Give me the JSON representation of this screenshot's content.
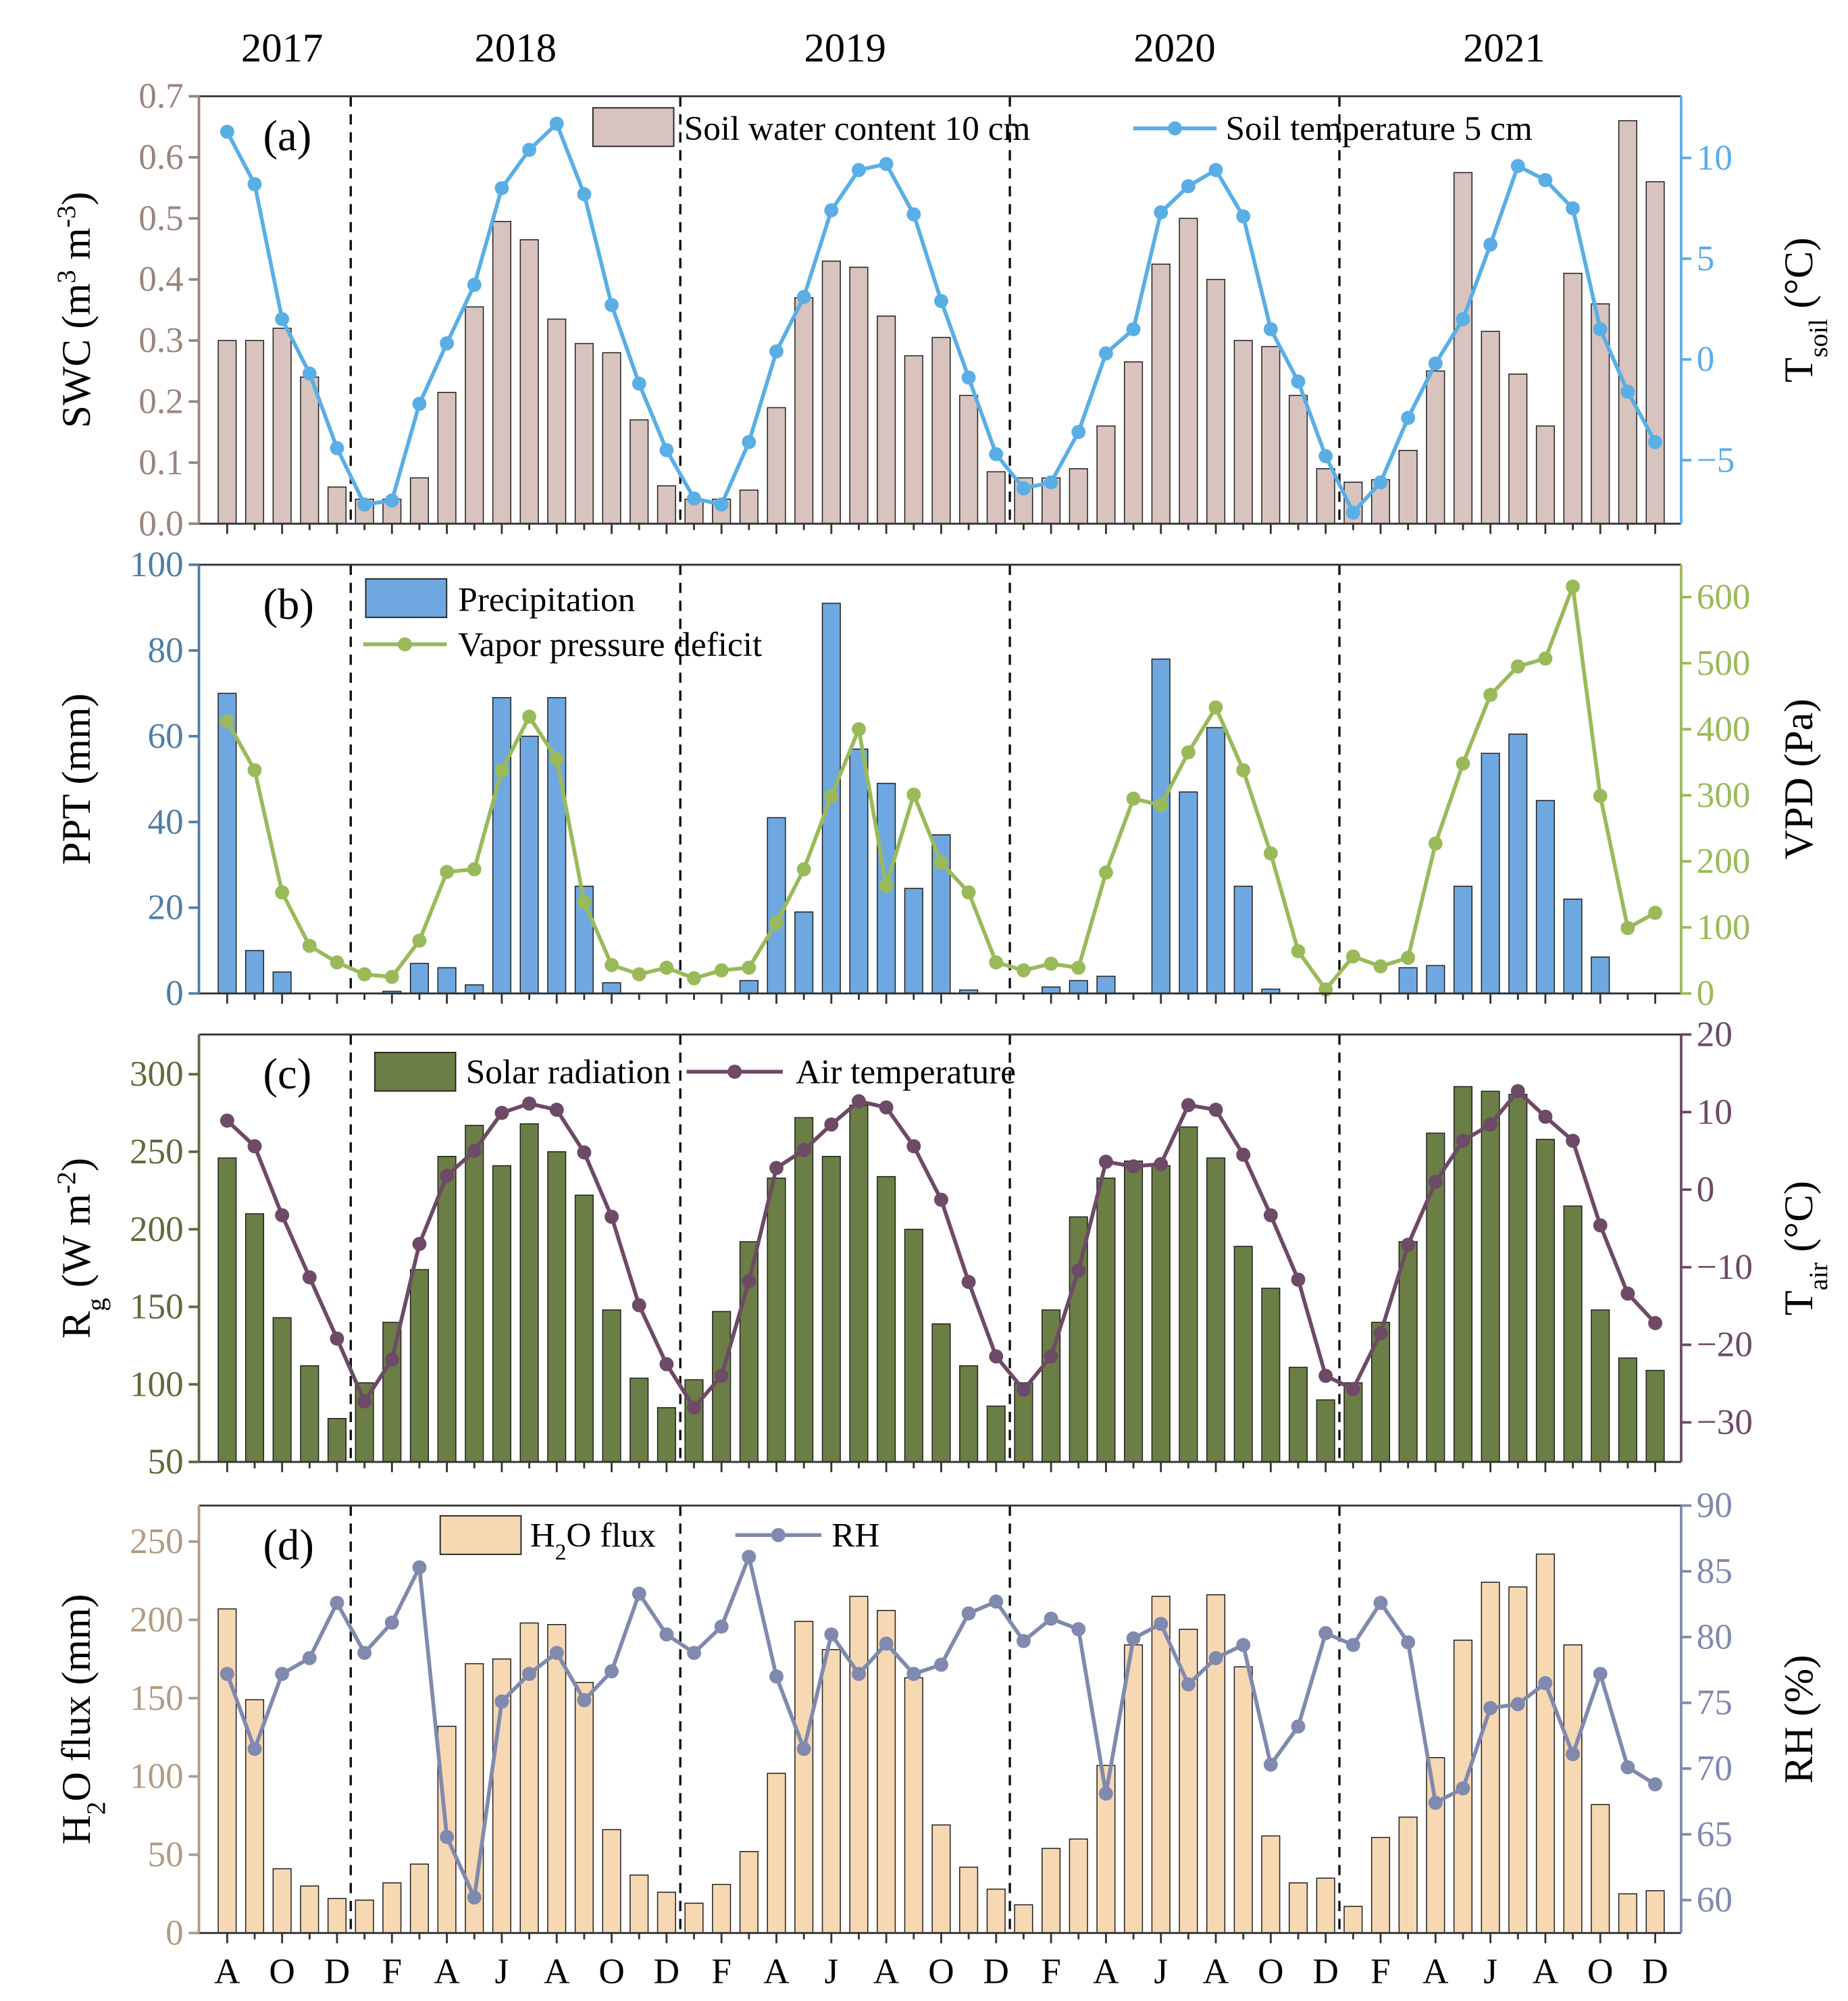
{
  "chart_data": [
    {
      "panel": "(a)",
      "type": "bar+line",
      "months": [
        "Aug 2017",
        "Sep 2017",
        "Oct 2017",
        "Nov 2017",
        "Dec 2017",
        "Jan 2018",
        "Feb 2018",
        "Mar 2018",
        "Apr 2018",
        "May 2018",
        "Jun 2018",
        "Jul 2018",
        "Aug 2018",
        "Sep 2018",
        "Oct 2018",
        "Nov 2018",
        "Dec 2018",
        "Jan 2019",
        "Feb 2019",
        "Mar 2019",
        "Apr 2019",
        "May 2019",
        "Jun 2019",
        "Jul 2019",
        "Aug 2019",
        "Sep 2019",
        "Oct 2019",
        "Nov 2019",
        "Dec 2019",
        "Jan 2020",
        "Feb 2020",
        "Mar 2020",
        "Apr 2020",
        "May 2020",
        "Jun 2020",
        "Jul 2020",
        "Aug 2020",
        "Sep 2020",
        "Oct 2020",
        "Nov 2020",
        "Dec 2020",
        "Jan 2021",
        "Feb 2021",
        "Mar 2021",
        "Apr 2021",
        "May 2021",
        "Jun 2021",
        "Jul 2021",
        "Aug 2021",
        "Sep 2021",
        "Oct 2021",
        "Nov 2021",
        "Dec 2021"
      ],
      "ylabel_left": [
        {
          "t": "SWC (m"
        },
        {
          "t": "3",
          "sup": true
        },
        {
          "t": " m"
        },
        {
          "t": "-3",
          "sup": true
        },
        {
          "t": ")"
        }
      ],
      "ylabel_right": [
        {
          "t": "T"
        },
        {
          "t": "soil",
          "sub": true
        },
        {
          "t": " (°C)"
        }
      ],
      "ylim_left": [
        0,
        0.7
      ],
      "ylim_right": [
        -8.15,
        13.06
      ],
      "yticks_left": [
        "0.0",
        "0.1",
        "0.2",
        "0.3",
        "0.4",
        "0.5",
        "0.6",
        "0.7"
      ],
      "yticks_right": [
        "-5",
        "0",
        "5",
        "10"
      ],
      "colors": {
        "bar": "#d8c3be",
        "line": "#5aaee6",
        "left_axis": "#9a857d",
        "right_axis": "#5aaee6"
      },
      "bar_series": {
        "name": "Soil water content 10 cm",
        "values": [
          0.3,
          0.3,
          0.32,
          0.24,
          0.06,
          0.04,
          0.04,
          0.075,
          0.215,
          0.355,
          0.495,
          0.465,
          0.335,
          0.295,
          0.28,
          0.17,
          0.062,
          0.04,
          0.04,
          0.055,
          0.19,
          0.37,
          0.43,
          0.42,
          0.34,
          0.275,
          0.305,
          0.21,
          0.085,
          0.075,
          0.075,
          0.09,
          0.16,
          0.265,
          0.425,
          0.5,
          0.4,
          0.3,
          0.29,
          0.21,
          0.09,
          0.068,
          0.072,
          0.12,
          0.25,
          0.575,
          0.315,
          0.245,
          0.16,
          0.41,
          0.36,
          0.66,
          0.56
        ]
      },
      "line_series": {
        "name": "Soil temperature 5 cm",
        "values": [
          11.3,
          8.7,
          2.0,
          -0.7,
          -4.4,
          -7.2,
          -7.0,
          -2.2,
          0.8,
          3.7,
          8.5,
          10.4,
          11.7,
          8.2,
          2.7,
          -1.2,
          -4.5,
          -6.9,
          -7.2,
          -4.1,
          0.4,
          3.1,
          7.4,
          9.4,
          9.7,
          7.2,
          2.9,
          -0.9,
          -4.7,
          -6.4,
          -6.1,
          -3.6,
          0.3,
          1.5,
          7.3,
          8.6,
          9.4,
          7.1,
          1.5,
          -1.1,
          -4.8,
          -7.6,
          -6.1,
          -2.9,
          -0.2,
          2.0,
          5.7,
          9.6,
          8.9,
          7.5,
          1.5,
          -1.6,
          -4.1
        ]
      }
    },
    {
      "panel": "(b)",
      "type": "bar+line",
      "ylabel_left": [
        {
          "t": "PPT (mm)"
        }
      ],
      "ylabel_right": [
        {
          "t": "VPD (Pa)"
        }
      ],
      "ylim_left": [
        0,
        100
      ],
      "ylim_right": [
        0,
        649
      ],
      "yticks_left": [
        "0",
        "20",
        "40",
        "60",
        "80",
        "100"
      ],
      "yticks_right": [
        "0",
        "100",
        "200",
        "300",
        "400",
        "500",
        "600"
      ],
      "colors": {
        "bar": "#6fa8e0",
        "line": "#9aba5a",
        "left_axis": "#4f7ea8",
        "right_axis": "#9aba5a"
      },
      "bar_series": {
        "name": "Precipitation",
        "values": [
          70,
          10,
          5,
          0,
          0,
          0,
          0.5,
          7,
          6,
          2,
          69,
          60,
          69,
          25,
          2.5,
          0,
          0,
          0,
          0,
          3,
          41,
          19,
          91,
          57,
          49,
          24.5,
          37,
          0.8,
          0,
          0,
          1.5,
          3,
          4,
          0,
          78,
          47,
          62,
          25,
          1,
          0,
          0,
          0,
          0,
          6,
          6.5,
          25,
          56,
          60.5,
          45,
          22,
          8.5,
          0,
          0
        ]
      },
      "line_series": {
        "name": "Vapor pressure deficit",
        "values": [
          412,
          338,
          153,
          72,
          47,
          29,
          25,
          80,
          184,
          188,
          338,
          419,
          355,
          138,
          43,
          29,
          39,
          23,
          35,
          39,
          107,
          188,
          299,
          400,
          163,
          301,
          198,
          153,
          47,
          35,
          45,
          39,
          183,
          295,
          285,
          365,
          433,
          338,
          212,
          64,
          6,
          56,
          41,
          54,
          227,
          348,
          452,
          495,
          507,
          616,
          299,
          99,
          122
        ]
      }
    },
    {
      "panel": "(c)",
      "type": "bar+line",
      "ylabel_left": [
        {
          "t": "R"
        },
        {
          "t": "g",
          "sub": true
        },
        {
          "t": " (W m"
        },
        {
          "t": "-2",
          "sup": true
        },
        {
          "t": ")"
        }
      ],
      "ylabel_right": [
        {
          "t": "T"
        },
        {
          "t": "air",
          "sub": true
        },
        {
          "t": " (°C)"
        }
      ],
      "ylim_left": [
        50,
        325.6
      ],
      "ylim_right": [
        -35.1,
        20
      ],
      "yticks_left": [
        "50",
        "100",
        "150",
        "200",
        "250",
        "300"
      ],
      "yticks_right": [
        "-30",
        "-20",
        "-10",
        "0",
        "10",
        "20"
      ],
      "colors": {
        "bar": "#6b7e46",
        "line": "#6d4a66",
        "left_axis": "#5e6b3c",
        "right_axis": "#6d4a66"
      },
      "bar_series": {
        "name": "Solar radiation",
        "values": [
          246,
          210,
          143,
          112,
          78,
          101,
          140,
          174,
          247,
          267,
          241,
          268,
          250,
          222,
          148,
          104,
          85,
          103,
          147,
          192,
          233,
          272,
          247,
          280,
          234,
          200,
          139,
          112,
          86,
          101,
          148,
          208,
          233,
          244,
          241,
          266,
          246,
          189,
          162,
          111,
          90,
          101,
          140,
          192,
          262,
          292,
          289,
          287,
          258,
          215,
          148,
          117,
          109
        ]
      },
      "line_series": {
        "name": "Air temperature",
        "values": [
          8.9,
          5.6,
          -3.3,
          -11.3,
          -19.2,
          -27.3,
          -21.9,
          -7.0,
          1.8,
          5.0,
          9.9,
          11.1,
          10.3,
          4.8,
          -3.5,
          -14.9,
          -22.5,
          -28.1,
          -24.0,
          -11.8,
          2.8,
          5.1,
          8.4,
          11.4,
          10.6,
          5.6,
          -1.3,
          -11.9,
          -21.5,
          -25.8,
          -21.5,
          -10.4,
          3.6,
          3.0,
          3.3,
          10.9,
          10.3,
          4.5,
          -3.3,
          -11.6,
          -24.0,
          -25.7,
          -18.5,
          -7.1,
          1.0,
          6.3,
          8.4,
          12.7,
          9.4,
          6.3,
          -4.6,
          -13.4,
          -17.2
        ]
      }
    },
    {
      "panel": "(d)",
      "type": "bar+line",
      "ylabel_left": [
        {
          "t": "H"
        },
        {
          "t": "2",
          "sub": true
        },
        {
          "t": "O flux (mm)"
        }
      ],
      "ylabel_right": [
        {
          "t": "RH (%)"
        }
      ],
      "ylim_left": [
        0,
        273
      ],
      "ylim_right": [
        57.5,
        90
      ],
      "yticks_left": [
        "0",
        "50",
        "100",
        "150",
        "200",
        "250"
      ],
      "yticks_right": [
        "60",
        "65",
        "70",
        "75",
        "80",
        "85",
        "90"
      ],
      "colors": {
        "bar": "#f6d8b2",
        "line": "#8089ae",
        "left_axis": "#b19c84",
        "right_axis": "#8089ae"
      },
      "bar_series": {
        "name": "H2O flux",
        "label_parts": [
          {
            "t": "H"
          },
          {
            "t": "2",
            "sub": true
          },
          {
            "t": "O flux"
          }
        ],
        "values": [
          207,
          149,
          41,
          30,
          22,
          21,
          32,
          44,
          132,
          172,
          175,
          198,
          197,
          160,
          66,
          37,
          26,
          19,
          31,
          52,
          102,
          199,
          181,
          215,
          206,
          163,
          69,
          42,
          28,
          18,
          54,
          60,
          107,
          184,
          215,
          194,
          216,
          170,
          62,
          32,
          35,
          17,
          61,
          74,
          112,
          187,
          224,
          221,
          242,
          184,
          82,
          25,
          27
        ]
      },
      "line_series": {
        "name": "RH",
        "values": [
          77.2,
          71.5,
          77.2,
          78.4,
          82.6,
          78.8,
          81.1,
          85.3,
          64.8,
          60.2,
          75.1,
          77.2,
          78.8,
          75.2,
          77.4,
          83.3,
          80.2,
          78.8,
          80.8,
          86.1,
          77.0,
          71.5,
          80.2,
          77.2,
          79.5,
          77.2,
          77.9,
          81.8,
          82.7,
          79.7,
          81.4,
          80.6,
          68.1,
          79.9,
          81.0,
          76.4,
          78.4,
          79.4,
          70.3,
          73.2,
          80.3,
          79.4,
          82.6,
          79.6,
          67.4,
          68.5,
          74.6,
          74.9,
          76.5,
          71.1,
          77.2,
          70.1,
          68.8
        ]
      }
    }
  ],
  "years": [
    "2017",
    "2018",
    "2019",
    "2020",
    "2021"
  ],
  "xtick_labels": [
    "A",
    "O",
    "D",
    "F",
    "A",
    "J",
    "A",
    "O",
    "D",
    "F",
    "A",
    "J",
    "A",
    "O",
    "D",
    "F",
    "A",
    "J",
    "A",
    "O",
    "D",
    "F",
    "A",
    "J",
    "A",
    "O",
    "D"
  ]
}
